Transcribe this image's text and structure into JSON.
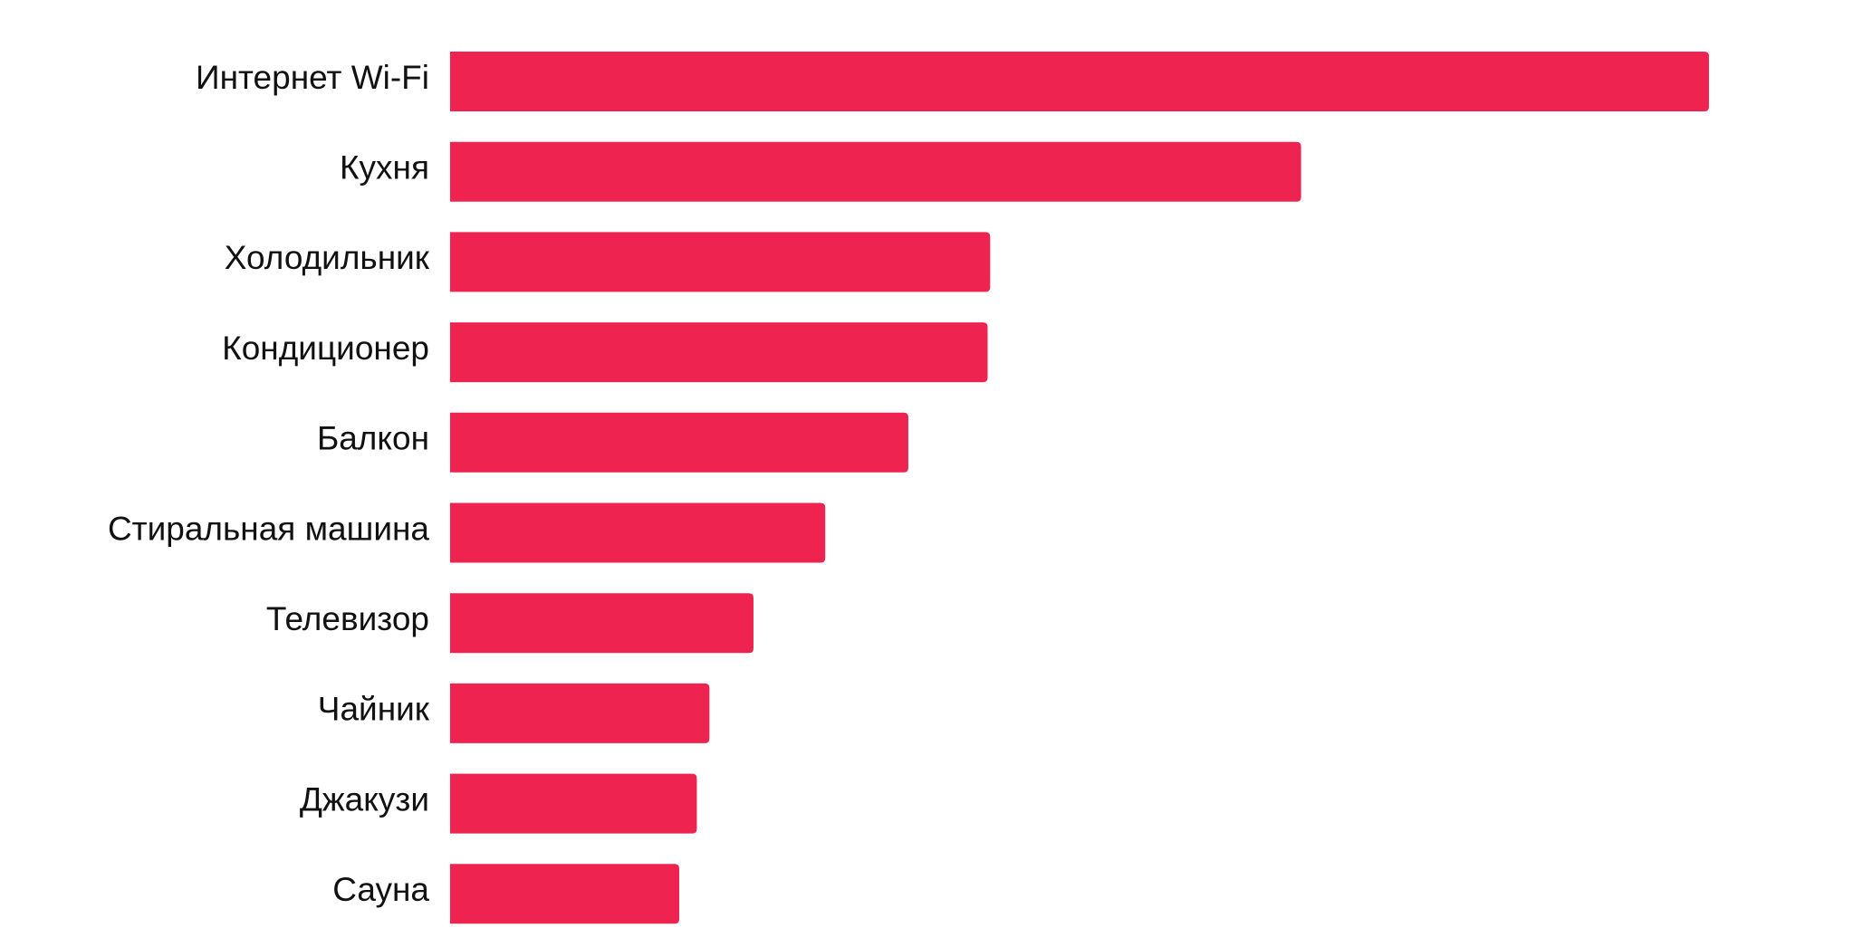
{
  "chart_data": {
    "type": "bar",
    "orientation": "horizontal",
    "categories": [
      "Интернет Wi-Fi",
      "Кухня",
      "Холодильник",
      "Кондиционер",
      "Балкон",
      "Стиральная машина",
      "Телевизор",
      "Чайник",
      "Джакузи",
      "Сауна"
    ],
    "values": [
      100,
      67.6,
      42.9,
      42.7,
      36.4,
      29.8,
      24.1,
      20.6,
      19.6,
      18.2
    ],
    "value_unit": "relative to largest bar (no axis printed)",
    "title": "",
    "xlabel": "",
    "ylabel": "",
    "xlim": [
      0,
      100
    ],
    "grid": false,
    "legend": "none",
    "bar_color": "#EE2350"
  }
}
